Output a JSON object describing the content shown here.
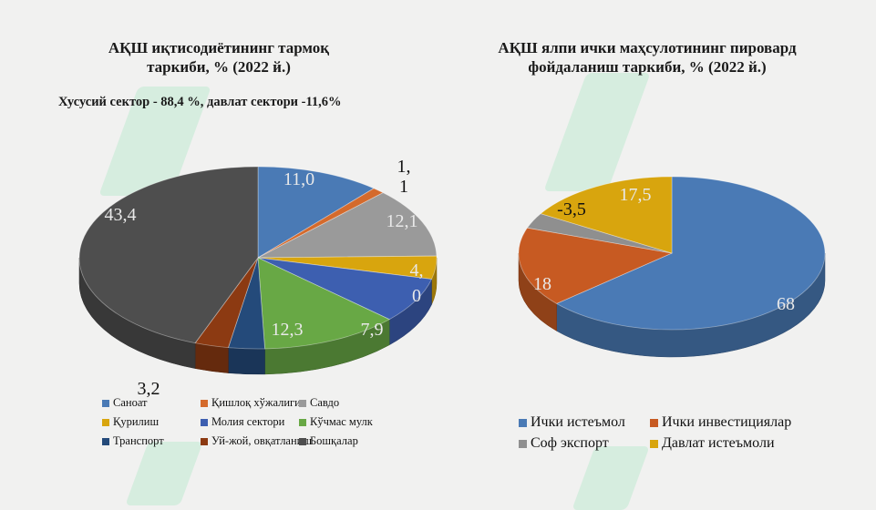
{
  "chart_data": [
    {
      "type": "pie",
      "title": "АҚШ иқтисодиётининг тармоқ таркиби, % (2022 й.)",
      "subtitle": "Хусусий сектор - 88,4 %, давлат сектори -11,6%",
      "slices": [
        {
          "label": "Саноат",
          "value": 11.0,
          "display": "11,0",
          "color": "#4a7ab5"
        },
        {
          "label": "Қишлоқ хўжалиги",
          "value": 1.1,
          "display": "1,1",
          "color": "#d46a2c"
        },
        {
          "label": "Савдо",
          "value": 12.1,
          "display": "12,1",
          "color": "#9a9a9a"
        },
        {
          "label": "Қурилиш",
          "value": 4.0,
          "display": "4,0",
          "color": "#d8a50e"
        },
        {
          "label": "Молия сектори",
          "value": 7.9,
          "display": "7,9",
          "color": "#3d5fb0"
        },
        {
          "label": "Кўчмас мулк",
          "value": 12.3,
          "display": "12,3",
          "color": "#68a845"
        },
        {
          "label": "Транспорт",
          "value": 3.2,
          "display": "3,2",
          "color": "#244a7a"
        },
        {
          "label": "Уй-жой, овқатланиш",
          "value": 3.0,
          "display": "",
          "color": "#8c3a12"
        },
        {
          "label": "Бошқалар",
          "value": 43.4,
          "display": "43,4",
          "color": "#4e4e4e"
        }
      ]
    },
    {
      "type": "pie",
      "title": "АҚШ ялпи ички маҳсулотининг пировард фойдаланиш таркиби, % (2022 й.)",
      "slices": [
        {
          "label": "Ички истеъмол",
          "value": 68,
          "display": "68",
          "color": "#4a7ab5"
        },
        {
          "label": "Ички инвестициялар",
          "value": 18,
          "display": "18",
          "color": "#c75a22"
        },
        {
          "label": "Соф экспорт",
          "value": 3.5,
          "display": "-3,5",
          "color": "#8f8f8f"
        },
        {
          "label": "Давлат истеъмоли",
          "value": 17.5,
          "display": "17,5",
          "color": "#d8a50e"
        }
      ]
    }
  ],
  "left": {
    "title_line1": "АҚШ иқтисодиётининг тармоқ",
    "title_line2": "таркиби, % (2022 й.)",
    "subtitle": "Хусусий сектор - 88,4 %, давлат сектори -11,6%"
  },
  "right": {
    "title_line1": "АҚШ ялпи ички маҳсулотининг пировард",
    "title_line2": "фойдаланиш таркиби, % (2022 й.)"
  },
  "watermark": {
    "text": "SOFF",
    "color": "#8ed8b0"
  }
}
